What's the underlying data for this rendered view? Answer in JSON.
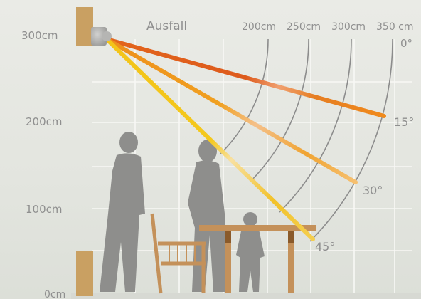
{
  "title": "Ausfall",
  "y_axis": {
    "ticks": [
      {
        "label": "300cm"
      },
      {
        "label": "200cm"
      },
      {
        "label": "100cm"
      },
      {
        "label": "0cm"
      }
    ]
  },
  "distances": [
    {
      "label": "200cm"
    },
    {
      "label": "250cm"
    },
    {
      "label": "300cm"
    },
    {
      "label": "350 cm"
    }
  ],
  "angles": [
    {
      "label": "0°"
    },
    {
      "label": "15°"
    },
    {
      "label": "30°"
    },
    {
      "label": "45°"
    }
  ],
  "colors": {
    "background": "#e6e8e2",
    "grid": "#f7f7f4",
    "wall": "#c9a062",
    "beam_red": "#d9381e",
    "beam_orange": "#e0701c",
    "beam_yellow": "#f2c21a",
    "silhouette": "#8e8e8c",
    "text": "#8f8f8f"
  },
  "icons": [
    "awning-heater-icon",
    "man-silhouette-icon",
    "woman-silhouette-icon",
    "child-silhouette-icon",
    "chair-icon",
    "table-icon"
  ]
}
